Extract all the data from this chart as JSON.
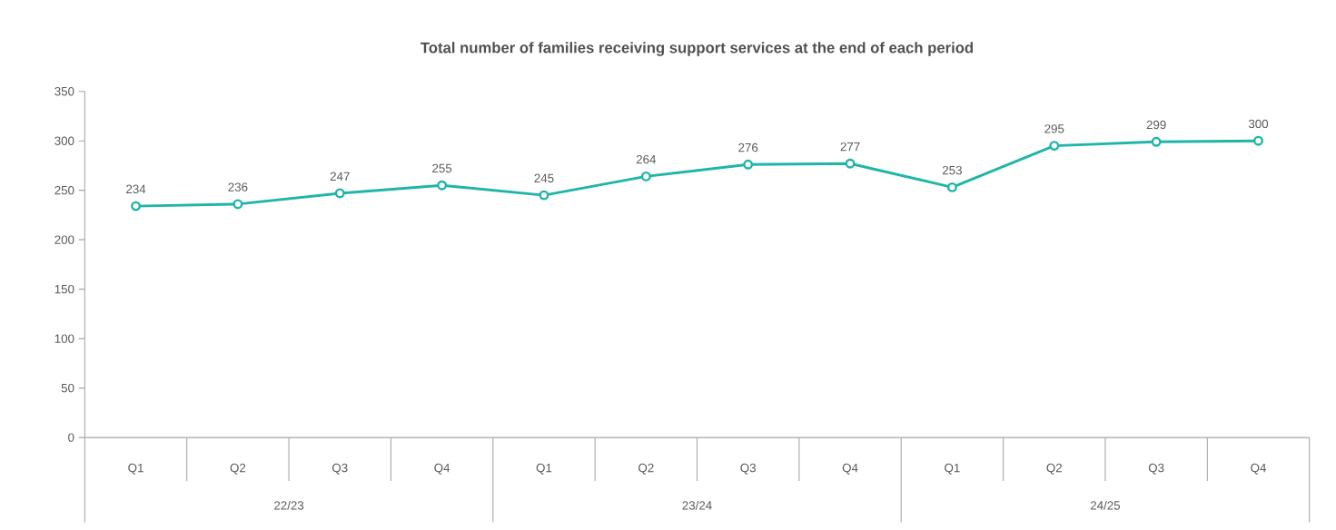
{
  "chart_data": {
    "type": "line",
    "title": "Total number of families receiving support services at the end of each period",
    "categories": [
      "Q1",
      "Q2",
      "Q3",
      "Q4",
      "Q1",
      "Q2",
      "Q3",
      "Q4",
      "Q1",
      "Q2",
      "Q3",
      "Q4"
    ],
    "values": [
      234,
      236,
      247,
      255,
      245,
      264,
      276,
      277,
      253,
      295,
      299,
      300
    ],
    "color": "#1fb5a8",
    "marker": "circle",
    "line_style": "solid",
    "data_labels": true,
    "grid": false,
    "ylim": [
      0,
      350
    ],
    "yticks": [
      0,
      50,
      100,
      150,
      200,
      250,
      300,
      350
    ],
    "annotations": [
      "22/23",
      "23/24",
      "24/25"
    ]
  }
}
